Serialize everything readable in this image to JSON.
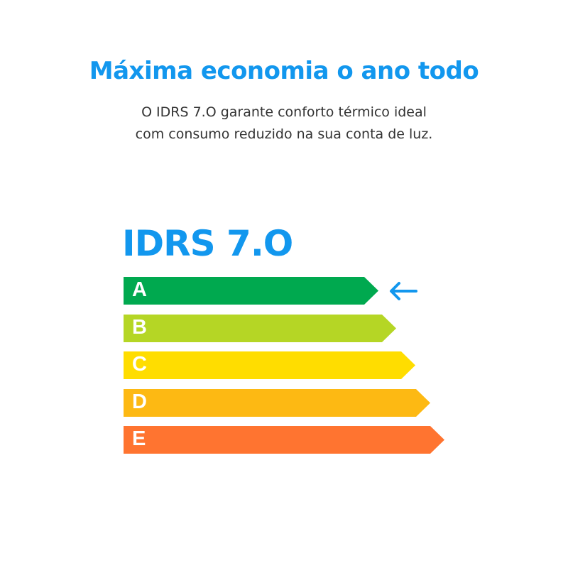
{
  "header": {
    "title": "Máxima economia o ano todo",
    "subtitle_line1": "O IDRS 7.O garante conforto térmico ideal",
    "subtitle_line2": "com consumo reduzido na sua conta de luz."
  },
  "label": {
    "title": "IDRS 7.O",
    "selected_class": "A",
    "indicator_icon": "arrow-left-icon",
    "accent_color": "#1297ee",
    "classes": [
      {
        "letter": "A",
        "color": "#00a94f"
      },
      {
        "letter": "B",
        "color": "#b5d625"
      },
      {
        "letter": "C",
        "color": "#ffdd00"
      },
      {
        "letter": "D",
        "color": "#fdb913"
      },
      {
        "letter": "E",
        "color": "#ff7430"
      }
    ]
  }
}
